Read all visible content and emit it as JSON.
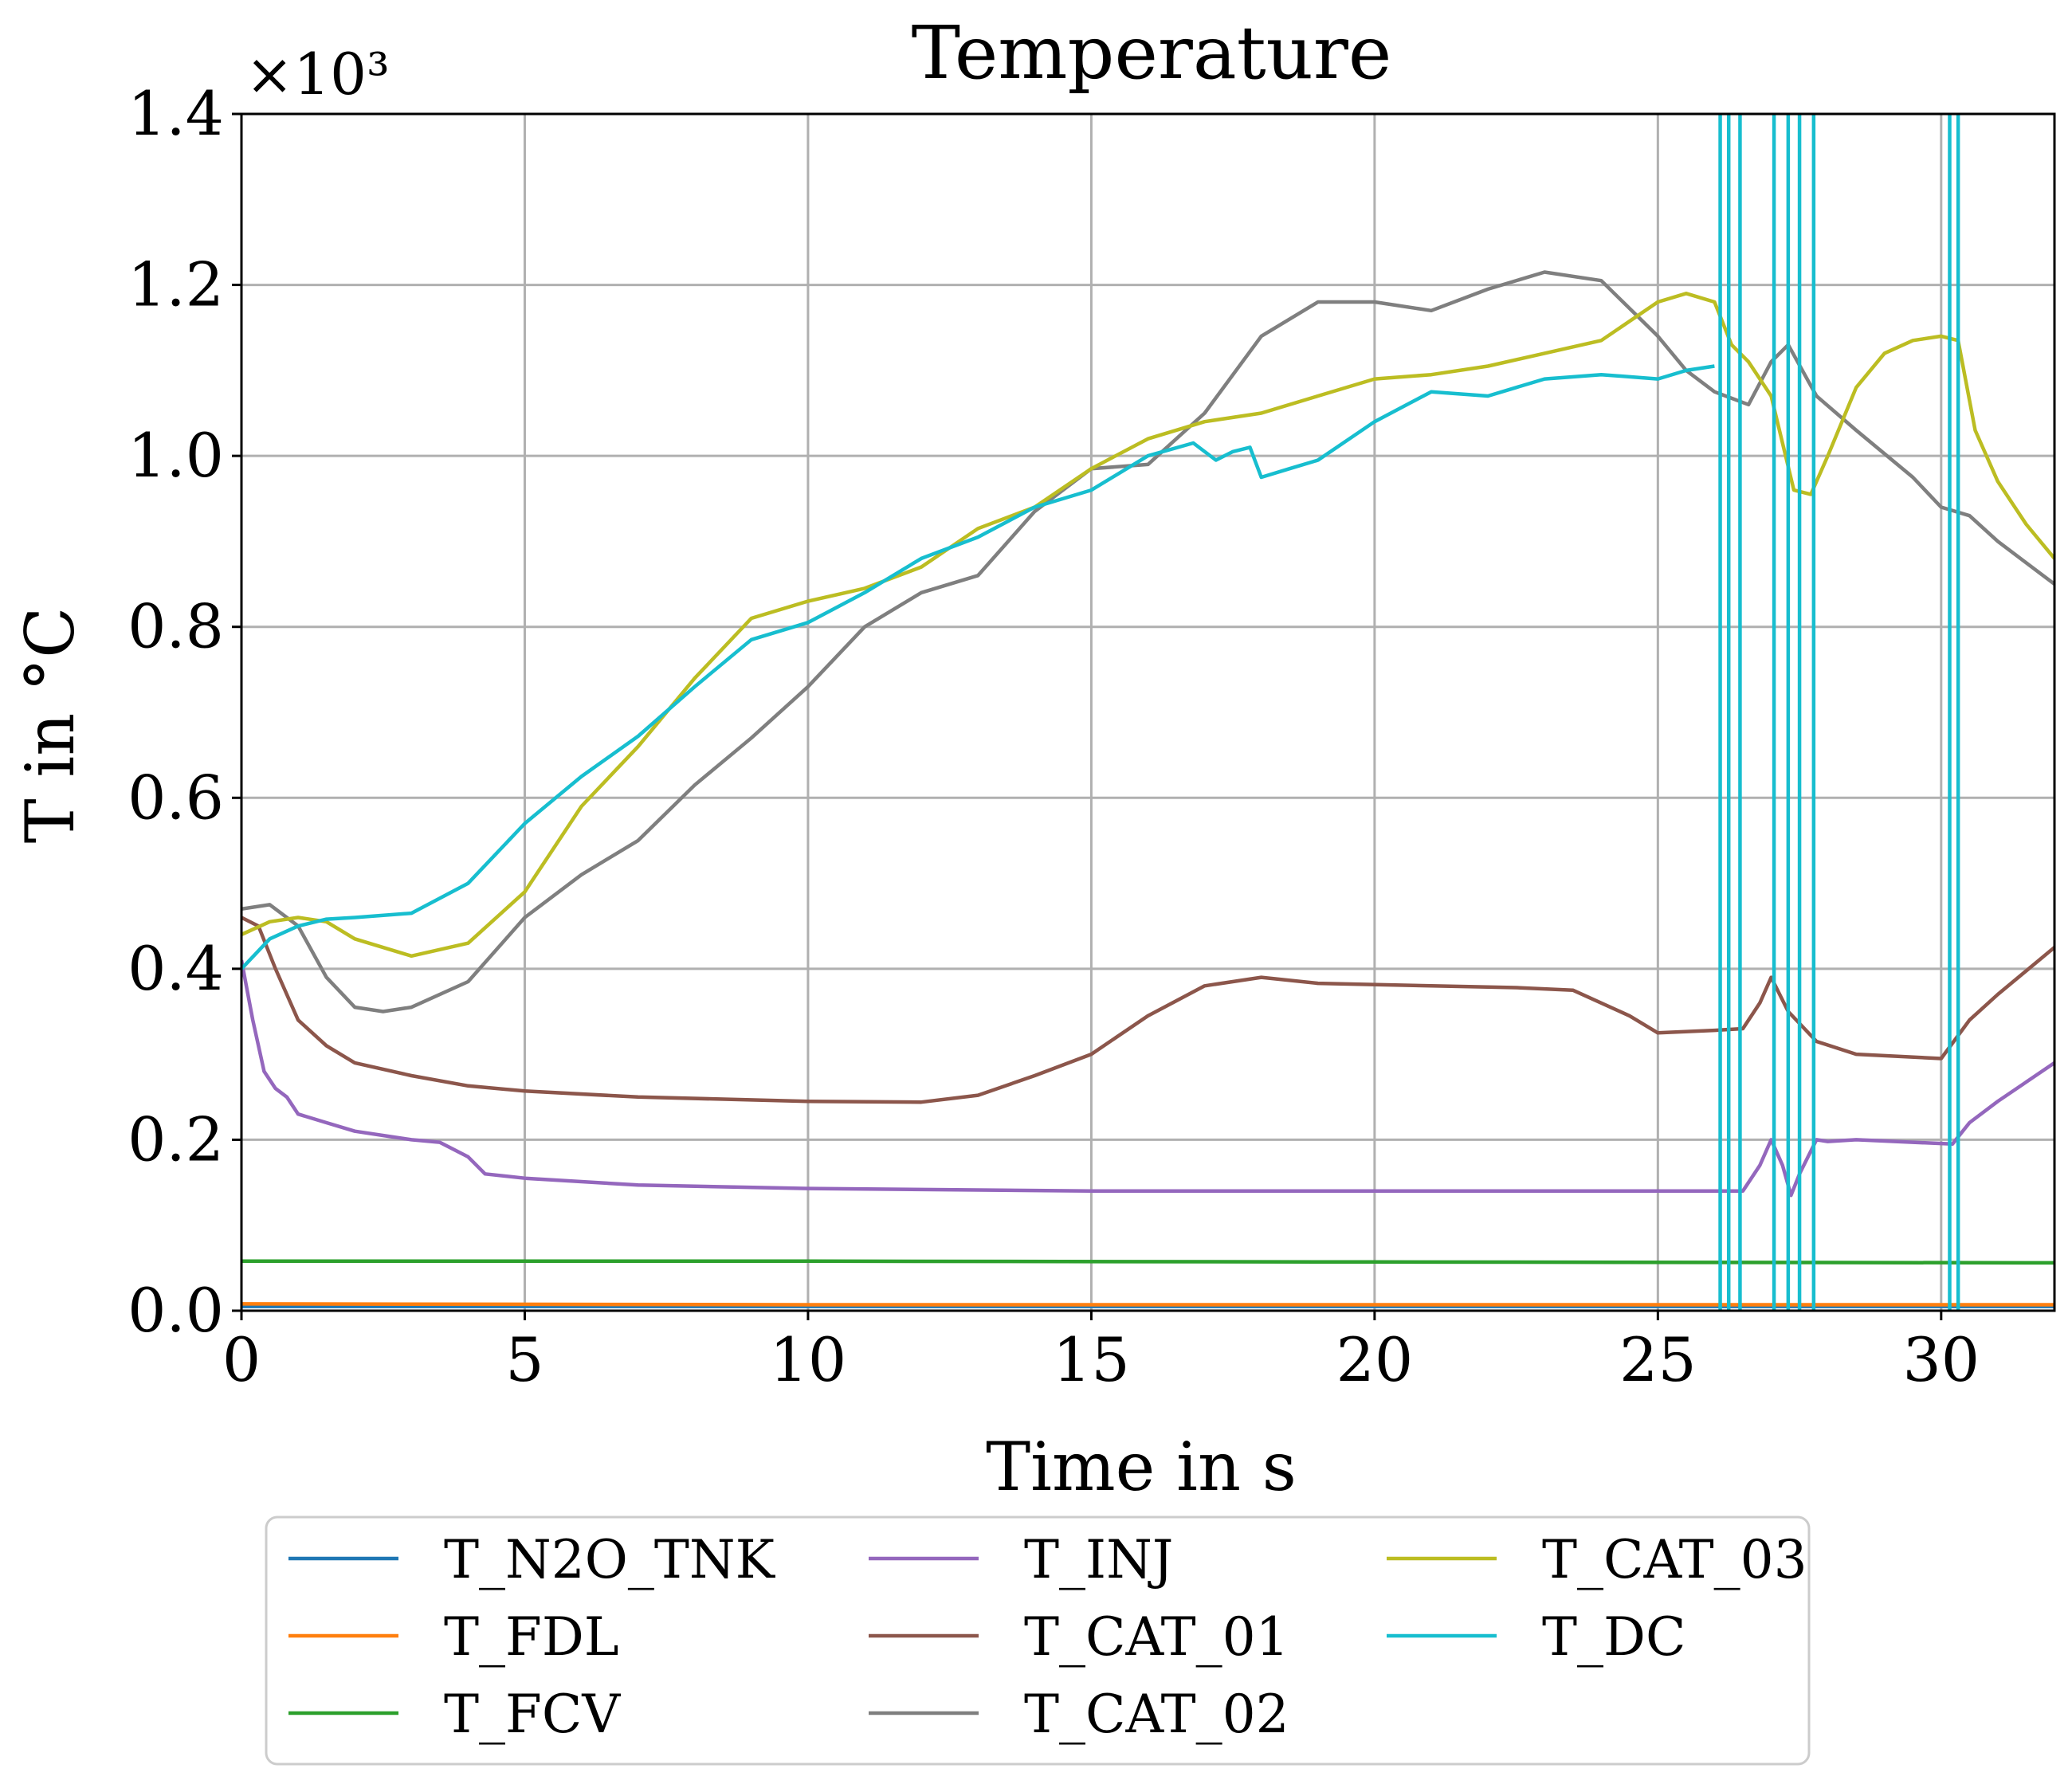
{
  "chart_data": {
    "type": "line",
    "title": "Temperature",
    "xlabel": "Time in s",
    "ylabel": "T in °C",
    "y_multiplier_label": "×10³",
    "xlim": [
      0,
      32
    ],
    "ylim": [
      0,
      1.4
    ],
    "x_ticks": [
      0,
      5,
      10,
      15,
      20,
      25,
      30
    ],
    "x_tick_labels": [
      "0",
      "5",
      "10",
      "15",
      "20",
      "25",
      "30"
    ],
    "y_ticks": [
      0,
      0.2,
      0.4,
      0.6,
      0.8,
      1.0,
      1.2,
      1.4
    ],
    "y_tick_labels": [
      "0.0",
      "0.2",
      "0.4",
      "0.6",
      "0.8",
      "1.0",
      "1.2",
      "1.4"
    ],
    "grid": true,
    "legend_position": "bottom-outside",
    "series": [
      {
        "name": "T_N2O_TNK",
        "color": "#1f77b4",
        "points": [
          [
            0,
            0.005
          ],
          [
            32,
            0.005
          ]
        ]
      },
      {
        "name": "T_FDL",
        "color": "#ff7f0e",
        "points": [
          [
            0,
            0.008
          ],
          [
            10,
            0.007
          ],
          [
            20,
            0.007
          ],
          [
            32,
            0.007
          ]
        ]
      },
      {
        "name": "T_FCV",
        "color": "#2ca02c",
        "points": [
          [
            0,
            0.058
          ],
          [
            10,
            0.058
          ],
          [
            20,
            0.057
          ],
          [
            32,
            0.056
          ]
        ]
      },
      {
        "name": "T_INJ",
        "color": "#9467bd",
        "points": [
          [
            0,
            0.41
          ],
          [
            0.2,
            0.34
          ],
          [
            0.4,
            0.28
          ],
          [
            0.6,
            0.26
          ],
          [
            0.8,
            0.25
          ],
          [
            1,
            0.23
          ],
          [
            1.5,
            0.22
          ],
          [
            2,
            0.21
          ],
          [
            3,
            0.2
          ],
          [
            3.5,
            0.197
          ],
          [
            4,
            0.18
          ],
          [
            4.3,
            0.16
          ],
          [
            5,
            0.155
          ],
          [
            7,
            0.147
          ],
          [
            10,
            0.143
          ],
          [
            15,
            0.14
          ],
          [
            20,
            0.14
          ],
          [
            25,
            0.14
          ],
          [
            26.2,
            0.14
          ],
          [
            26.5,
            0.14
          ],
          [
            26.8,
            0.17
          ],
          [
            27.0,
            0.2
          ],
          [
            27.2,
            0.17
          ],
          [
            27.35,
            0.135
          ],
          [
            27.5,
            0.16
          ],
          [
            27.8,
            0.2
          ],
          [
            28,
            0.198
          ],
          [
            28.5,
            0.2
          ],
          [
            30.2,
            0.195
          ],
          [
            30.5,
            0.22
          ],
          [
            31,
            0.245
          ],
          [
            32,
            0.29
          ]
        ]
      },
      {
        "name": "T_CAT_01",
        "color": "#8c564b",
        "points": [
          [
            0,
            0.46
          ],
          [
            0.3,
            0.45
          ],
          [
            0.6,
            0.4
          ],
          [
            1,
            0.34
          ],
          [
            1.5,
            0.31
          ],
          [
            2,
            0.29
          ],
          [
            3,
            0.275
          ],
          [
            4,
            0.263
          ],
          [
            5,
            0.257
          ],
          [
            7,
            0.25
          ],
          [
            10,
            0.245
          ],
          [
            12,
            0.244
          ],
          [
            13,
            0.252
          ],
          [
            14,
            0.275
          ],
          [
            15,
            0.3
          ],
          [
            16,
            0.345
          ],
          [
            17,
            0.38
          ],
          [
            18,
            0.39
          ],
          [
            19,
            0.383
          ],
          [
            21,
            0.38
          ],
          [
            22.5,
            0.378
          ],
          [
            23.5,
            0.375
          ],
          [
            24.5,
            0.345
          ],
          [
            25,
            0.325
          ],
          [
            26,
            0.328
          ],
          [
            26.5,
            0.33
          ],
          [
            26.8,
            0.36
          ],
          [
            27,
            0.39
          ],
          [
            27.3,
            0.35
          ],
          [
            27.8,
            0.315
          ],
          [
            28.5,
            0.3
          ],
          [
            30,
            0.295
          ],
          [
            30.5,
            0.34
          ],
          [
            31,
            0.37
          ],
          [
            32,
            0.425
          ]
        ]
      },
      {
        "name": "T_CAT_02",
        "color": "#7f7f7f",
        "points": [
          [
            0,
            0.47
          ],
          [
            0.5,
            0.475
          ],
          [
            1,
            0.45
          ],
          [
            1.5,
            0.39
          ],
          [
            2,
            0.355
          ],
          [
            2.5,
            0.35
          ],
          [
            3,
            0.355
          ],
          [
            4,
            0.385
          ],
          [
            5,
            0.46
          ],
          [
            6,
            0.51
          ],
          [
            7,
            0.55
          ],
          [
            8,
            0.615
          ],
          [
            9,
            0.67
          ],
          [
            10,
            0.73
          ],
          [
            11,
            0.8
          ],
          [
            12,
            0.84
          ],
          [
            13,
            0.86
          ],
          [
            14,
            0.935
          ],
          [
            15,
            0.985
          ],
          [
            16,
            0.99
          ],
          [
            17,
            1.05
          ],
          [
            18,
            1.14
          ],
          [
            19,
            1.18
          ],
          [
            20,
            1.18
          ],
          [
            21,
            1.17
          ],
          [
            22,
            1.195
          ],
          [
            23,
            1.215
          ],
          [
            24,
            1.205
          ],
          [
            25,
            1.14
          ],
          [
            25.5,
            1.1
          ],
          [
            26,
            1.075
          ],
          [
            26.6,
            1.06
          ],
          [
            27,
            1.11
          ],
          [
            27.3,
            1.13
          ],
          [
            27.8,
            1.07
          ],
          [
            28.5,
            1.03
          ],
          [
            29.5,
            0.975
          ],
          [
            30,
            0.94
          ],
          [
            30.5,
            0.93
          ],
          [
            31,
            0.9
          ],
          [
            32,
            0.85
          ]
        ]
      },
      {
        "name": "T_CAT_03",
        "color": "#bcbd22",
        "points": [
          [
            0,
            0.44
          ],
          [
            0.5,
            0.455
          ],
          [
            1,
            0.46
          ],
          [
            1.5,
            0.455
          ],
          [
            2,
            0.435
          ],
          [
            3,
            0.415
          ],
          [
            4,
            0.43
          ],
          [
            5,
            0.49
          ],
          [
            6,
            0.59
          ],
          [
            7,
            0.66
          ],
          [
            8,
            0.74
          ],
          [
            9,
            0.81
          ],
          [
            10,
            0.83
          ],
          [
            11,
            0.845
          ],
          [
            12,
            0.87
          ],
          [
            13,
            0.915
          ],
          [
            14,
            0.94
          ],
          [
            15,
            0.985
          ],
          [
            16,
            1.02
          ],
          [
            17,
            1.04
          ],
          [
            18,
            1.05
          ],
          [
            19,
            1.07
          ],
          [
            20,
            1.09
          ],
          [
            21,
            1.095
          ],
          [
            22,
            1.105
          ],
          [
            23,
            1.12
          ],
          [
            24,
            1.135
          ],
          [
            25,
            1.18
          ],
          [
            25.5,
            1.19
          ],
          [
            26,
            1.18
          ],
          [
            26.3,
            1.13
          ],
          [
            26.6,
            1.11
          ],
          [
            27,
            1.07
          ],
          [
            27.4,
            0.96
          ],
          [
            27.7,
            0.955
          ],
          [
            28,
            1.0
          ],
          [
            28.5,
            1.08
          ],
          [
            29,
            1.12
          ],
          [
            29.5,
            1.135
          ],
          [
            30,
            1.14
          ],
          [
            30.3,
            1.135
          ],
          [
            30.6,
            1.03
          ],
          [
            31,
            0.97
          ],
          [
            31.5,
            0.92
          ],
          [
            32,
            0.88
          ]
        ]
      },
      {
        "name": "T_DC",
        "color": "#17becf",
        "points": [
          [
            0,
            0.4
          ],
          [
            0.5,
            0.435
          ],
          [
            1,
            0.45
          ],
          [
            1.5,
            0.458
          ],
          [
            2,
            0.46
          ],
          [
            3,
            0.465
          ],
          [
            4,
            0.5
          ],
          [
            5,
            0.57
          ],
          [
            6,
            0.625
          ],
          [
            7,
            0.672
          ],
          [
            8,
            0.73
          ],
          [
            9,
            0.785
          ],
          [
            10,
            0.805
          ],
          [
            11,
            0.84
          ],
          [
            12,
            0.88
          ],
          [
            13,
            0.905
          ],
          [
            14,
            0.94
          ],
          [
            15,
            0.96
          ],
          [
            16,
            1.0
          ],
          [
            16.8,
            1.015
          ],
          [
            17.2,
            0.995
          ],
          [
            17.5,
            1.005
          ],
          [
            17.8,
            1.01
          ],
          [
            18,
            0.975
          ],
          [
            18.5,
            0.985
          ],
          [
            19,
            0.995
          ],
          [
            20,
            1.04
          ],
          [
            21,
            1.075
          ],
          [
            22,
            1.07
          ],
          [
            22.5,
            1.08
          ],
          [
            23,
            1.09
          ],
          [
            24,
            1.095
          ],
          [
            25,
            1.09
          ],
          [
            25.5,
            1.1
          ],
          [
            26,
            1.105
          ]
        ]
      }
    ],
    "vertical_lines": {
      "color": "#17becf",
      "x": [
        26.1,
        26.25,
        26.45,
        27.05,
        27.3,
        27.5,
        27.75,
        30.15,
        30.3
      ]
    },
    "legend": [
      [
        "T_N2O_TNK",
        "T_INJ",
        "T_CAT_03"
      ],
      [
        "T_FDL",
        "T_CAT_01",
        "T_DC"
      ],
      [
        "T_FCV",
        "T_CAT_02"
      ]
    ]
  }
}
